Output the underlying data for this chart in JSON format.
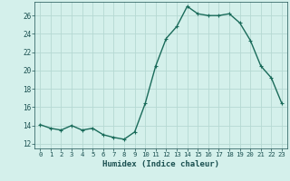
{
  "x": [
    0,
    1,
    2,
    3,
    4,
    5,
    6,
    7,
    8,
    9,
    10,
    11,
    12,
    13,
    14,
    15,
    16,
    17,
    18,
    19,
    20,
    21,
    22,
    23
  ],
  "y": [
    14.1,
    13.7,
    13.5,
    14.0,
    13.5,
    13.7,
    13.0,
    12.7,
    12.5,
    13.3,
    16.4,
    20.5,
    23.5,
    24.8,
    27.0,
    26.2,
    26.0,
    26.0,
    26.2,
    25.2,
    23.3,
    20.5,
    19.2,
    16.4
  ],
  "line_color": "#1a6b5a",
  "marker": "+",
  "marker_size": 3,
  "line_width": 1.0,
  "bg_color": "#d4f0eb",
  "grid_color": "#b5d9d3",
  "tick_color": "#1a5050",
  "xlabel": "Humidex (Indice chaleur)",
  "xlim": [
    -0.5,
    23.5
  ],
  "ylim": [
    11.5,
    27.5
  ],
  "yticks": [
    12,
    14,
    16,
    18,
    20,
    22,
    24,
    26
  ],
  "xticks": [
    0,
    1,
    2,
    3,
    4,
    5,
    6,
    7,
    8,
    9,
    10,
    11,
    12,
    13,
    14,
    15,
    16,
    17,
    18,
    19,
    20,
    21,
    22,
    23
  ]
}
